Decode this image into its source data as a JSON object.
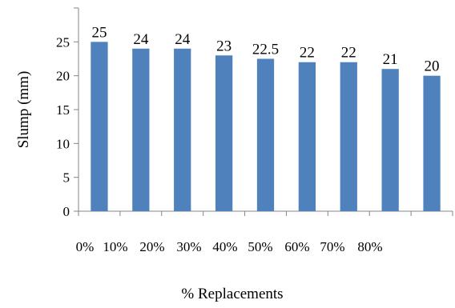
{
  "chart_data": {
    "type": "bar",
    "title": "",
    "xlabel": "% Replacements",
    "ylabel": "Slump (mm)",
    "categories": [
      "0%",
      "10%",
      "20%",
      "30%",
      "40%",
      "50%",
      "60%",
      "70%",
      "80%"
    ],
    "values": [
      25,
      24,
      24,
      23,
      22.5,
      22,
      22,
      21,
      20
    ],
    "value_labels": [
      "25",
      "24",
      "24",
      "23",
      "22.5",
      "22",
      "22",
      "21",
      "20"
    ],
    "y_ticks": [
      "0",
      "5",
      "10",
      "15",
      "20",
      "25"
    ],
    "ylim": [
      0,
      30
    ],
    "bar_color": "#4f81bd",
    "axis_color": "#868686",
    "grid": false,
    "legend": "none"
  }
}
